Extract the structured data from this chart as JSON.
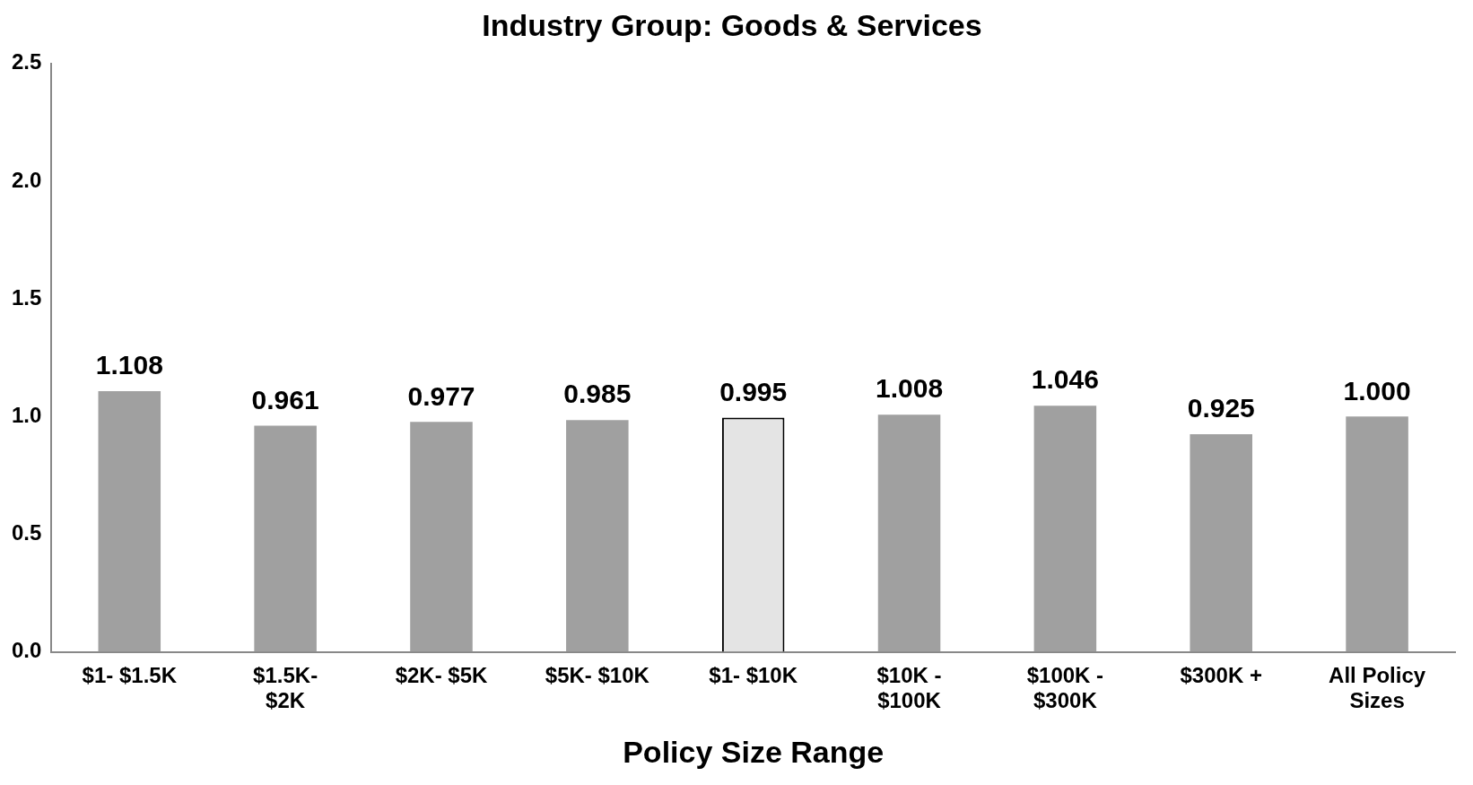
{
  "chart_data": {
    "type": "bar",
    "title": "Industry Group: Goods & Services",
    "xlabel": "Policy Size Range",
    "categories": [
      "$1- $1.5K",
      "$1.5K- $2K",
      "$2K- $5K",
      "$5K- $10K",
      "$1- $10K",
      "$10K - $100K",
      "$100K - $300K",
      "$300K +",
      "All Policy Sizes"
    ],
    "values": [
      1.108,
      0.961,
      0.977,
      0.985,
      0.995,
      1.008,
      1.046,
      0.925,
      1.0
    ],
    "colors": [
      "#a0a0a0",
      "#a0a0a0",
      "#a0a0a0",
      "#a0a0a0",
      "#e4e4e4",
      "#a0a0a0",
      "#a0a0a0",
      "#a0a0a0",
      "#a0a0a0"
    ],
    "value_labels": [
      "1.108",
      "0.961",
      "0.977",
      "0.985",
      "0.995",
      "1.008",
      "1.046",
      "0.925",
      "1.000"
    ],
    "ylim": [
      0,
      2.5
    ],
    "yticks": [
      {
        "value": 0,
        "label": "0.0"
      },
      {
        "value": 0.5,
        "label": "0.5"
      },
      {
        "value": 1,
        "label": "1.0"
      },
      {
        "value": 1.5,
        "label": "1.5"
      },
      {
        "value": 2,
        "label": "2.0"
      },
      {
        "value": 2.5,
        "label": "2.5"
      }
    ],
    "grid": false,
    "legend": false
  }
}
